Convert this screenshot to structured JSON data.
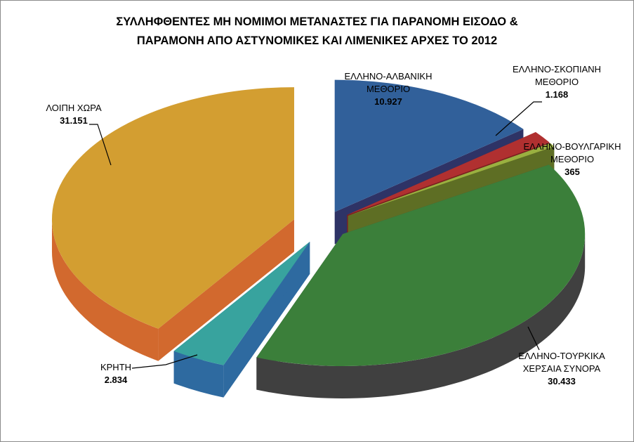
{
  "chart_data": {
    "type": "pie",
    "title_lines": [
      "ΣΥΛΛΗΦΘΕΝΤΕΣ ΜΗ ΝΟΜΙΜΟΙ ΜΕΤΑΝΑΣΤΕΣ ΓΙΑ ΠΑΡΑΝΟΜΗ ΕΙΣΟΔΟ &",
      "ΠΑΡΑΜΟΝΗ ΑΠΟ ΑΣΤΥΝΟΜΙΚΕΣ ΚΑΙ ΛΙΜΕΝΙΚΕΣ ΑΡΧΕΣ ΤΟ 2012"
    ],
    "slices": [
      {
        "label_lines": [
          "ΕΛΛΗΝΟ-ΑΛΒΑΝΙΚΗ",
          "ΜΕΘΟΡΙΟ"
        ],
        "value": 10927,
        "value_label": "10.927",
        "color": "#31609A",
        "side_color": "#2E3366"
      },
      {
        "label_lines": [
          "ΕΛΛΗΝΟ-ΣΚΟΠΙΑΝΗ",
          "ΜΕΘΟΡΙΟ"
        ],
        "value": 1168,
        "value_label": "1.168",
        "color": "#B03030",
        "side_color": "#7A2020"
      },
      {
        "label_lines": [
          "ΕΛΛΗΝΟ-ΒΟΥΛΓΑΡΙΚΗ",
          "ΜΕΘΟΡΙΟ"
        ],
        "value": 365,
        "value_label": "365",
        "color": "#9AB040",
        "side_color": "#5E6E24"
      },
      {
        "label_lines": [
          "ΕΛΛΗΝΟ-ΤΟΥΡΚΙΚΑ",
          "ΧΕΡΣΑΙΑ ΣΥΝΟΡΑ"
        ],
        "value": 30433,
        "value_label": "30.433",
        "color": "#3B7F3A",
        "side_color": "#404040"
      },
      {
        "label_lines": [
          "ΚΡΗΤΗ"
        ],
        "value": 2834,
        "value_label": "2.834",
        "color": "#38A39E",
        "side_color": "#2E6AA0"
      },
      {
        "label_lines": [
          "ΛΟΙΠΗ ΧΩΡΑ"
        ],
        "value": 31151,
        "value_label": "31.151",
        "color": "#D39E31",
        "side_color": "#D2692E"
      }
    ]
  }
}
